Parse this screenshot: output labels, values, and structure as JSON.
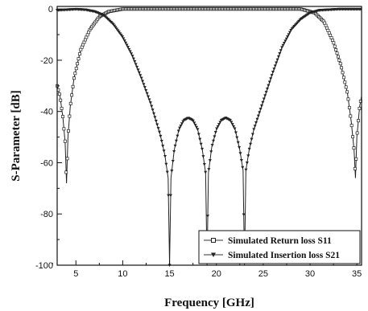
{
  "chart_data": {
    "type": "line",
    "xlabel": "Frequency [GHz]",
    "ylabel": "S-Parameter [dB]",
    "xlim": [
      3,
      35.5
    ],
    "ylim": [
      -100,
      1
    ],
    "x_ticks": [
      5,
      10,
      15,
      20,
      25,
      30,
      35
    ],
    "y_ticks": [
      0,
      -20,
      -40,
      -60,
      -80,
      -100
    ],
    "grid": false,
    "legend_position": "bottom-right",
    "series": [
      {
        "name": "Simulated Return loss S11",
        "marker": "open-square",
        "points": [
          [
            3.0,
            -30
          ],
          [
            3.3,
            -34
          ],
          [
            3.6,
            -42
          ],
          [
            3.85,
            -52
          ],
          [
            4.0,
            -68
          ],
          [
            4.15,
            -50
          ],
          [
            4.4,
            -38
          ],
          [
            4.8,
            -27
          ],
          [
            5.5,
            -16
          ],
          [
            6.5,
            -8
          ],
          [
            7.5,
            -3
          ],
          [
            8.5,
            -1
          ],
          [
            10,
            0
          ],
          [
            15,
            0
          ],
          [
            20,
            0
          ],
          [
            25,
            0
          ],
          [
            29,
            0
          ],
          [
            30.5,
            -1.5
          ],
          [
            31.5,
            -5
          ],
          [
            32.5,
            -13
          ],
          [
            33.3,
            -22
          ],
          [
            34.0,
            -33
          ],
          [
            34.4,
            -44
          ],
          [
            34.7,
            -55
          ],
          [
            34.85,
            -66
          ],
          [
            35.0,
            -50
          ],
          [
            35.3,
            -38
          ],
          [
            35.5,
            -34
          ]
        ]
      },
      {
        "name": "Simulated Insertion loss S21",
        "marker": "filled-triangle-down",
        "points": [
          [
            3.0,
            -0.5
          ],
          [
            5,
            -0.1
          ],
          [
            6,
            -0.3
          ],
          [
            7,
            -1
          ],
          [
            8,
            -2.5
          ],
          [
            9,
            -6
          ],
          [
            10,
            -11
          ],
          [
            11,
            -18
          ],
          [
            12,
            -27
          ],
          [
            13,
            -37
          ],
          [
            14,
            -49
          ],
          [
            14.5,
            -57
          ],
          [
            14.85,
            -66
          ],
          [
            15.0,
            -100
          ],
          [
            15.15,
            -66
          ],
          [
            15.5,
            -55
          ],
          [
            16,
            -47
          ],
          [
            16.5,
            -43.5
          ],
          [
            17,
            -42.5
          ],
          [
            17.5,
            -43.5
          ],
          [
            18,
            -47
          ],
          [
            18.5,
            -55
          ],
          [
            18.85,
            -64
          ],
          [
            19.0,
            -100
          ],
          [
            19.15,
            -64
          ],
          [
            19.5,
            -54
          ],
          [
            20,
            -47
          ],
          [
            20.5,
            -43.5
          ],
          [
            21,
            -42.5
          ],
          [
            21.5,
            -43.5
          ],
          [
            22,
            -47
          ],
          [
            22.5,
            -55
          ],
          [
            22.85,
            -63
          ],
          [
            23.0,
            -100
          ],
          [
            23.15,
            -63
          ],
          [
            23.5,
            -55
          ],
          [
            24,
            -47
          ],
          [
            25,
            -36
          ],
          [
            26,
            -25
          ],
          [
            27,
            -15
          ],
          [
            28,
            -8
          ],
          [
            29,
            -4
          ],
          [
            30,
            -1.5
          ],
          [
            31,
            -0.5
          ],
          [
            33,
            -0.1
          ],
          [
            35.5,
            -0.1
          ]
        ]
      }
    ]
  }
}
